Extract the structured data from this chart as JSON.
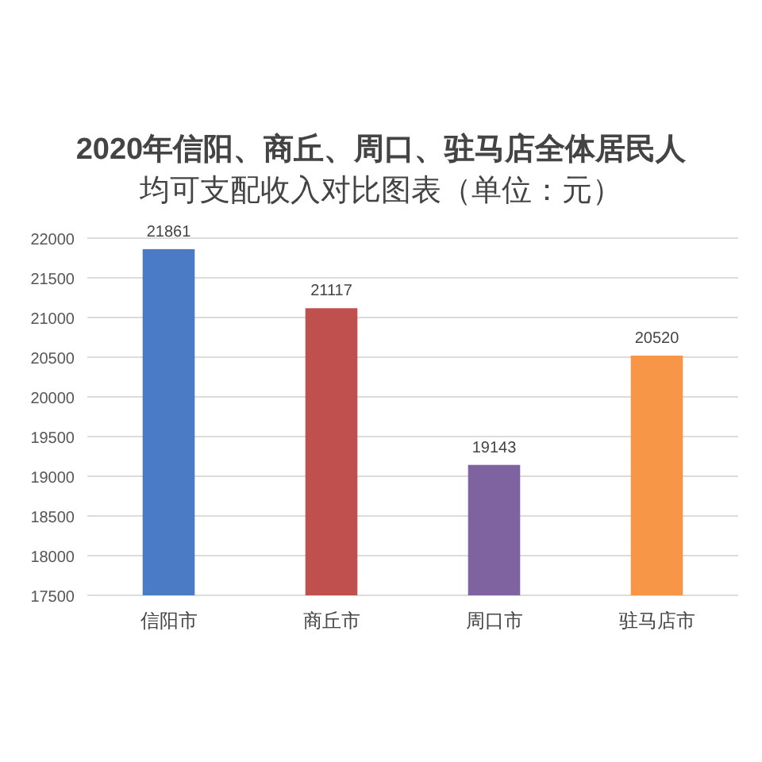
{
  "chart_data": {
    "type": "bar",
    "title": "2020年信阳、商丘、周口、驻马店全体居民人均可支配收入对比图表（单位：元）",
    "categories": [
      "信阳市",
      "商丘市",
      "周口市",
      "驻马店市"
    ],
    "values": [
      21861,
      21117,
      19143,
      20520
    ],
    "colors": [
      "#4a7bc4",
      "#c0504d",
      "#7f63a1",
      "#f79646"
    ],
    "ylim": [
      17500,
      22000
    ],
    "yticks": [
      17500,
      18000,
      18500,
      19000,
      19500,
      20000,
      20500,
      21000,
      21500,
      22000
    ],
    "grid": "y",
    "data_labels": true
  }
}
